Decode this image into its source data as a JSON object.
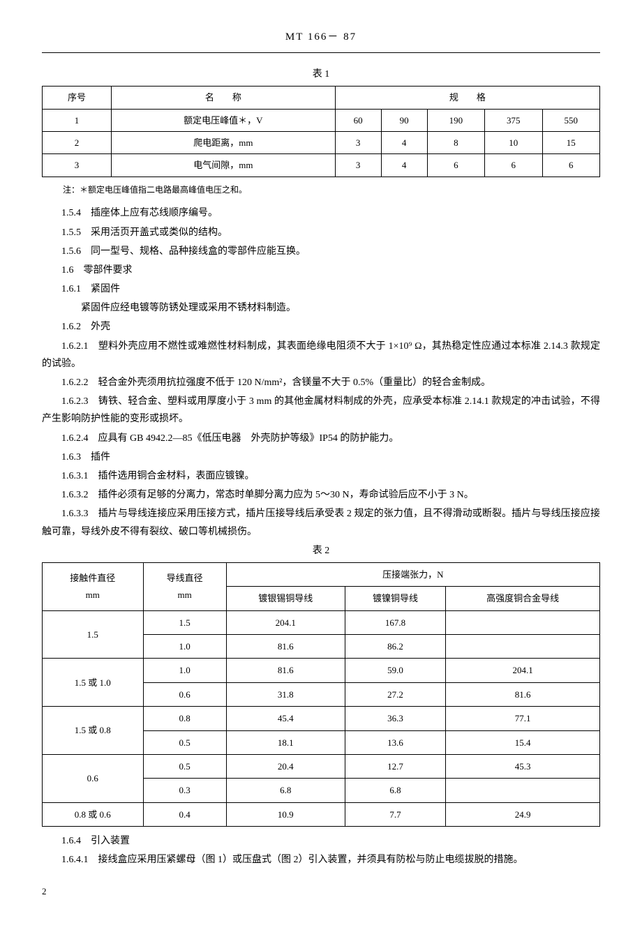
{
  "header": {
    "code": "MT 166－ 87"
  },
  "table1": {
    "caption": "表 1",
    "headers": {
      "col1": "序号",
      "col2": "名　　称",
      "col3": "规　　格"
    },
    "rows": [
      {
        "no": "1",
        "name": "额定电压峰值＊，V",
        "vals": [
          "60",
          "90",
          "190",
          "375",
          "550"
        ]
      },
      {
        "no": "2",
        "name": "爬电距离，mm",
        "vals": [
          "3",
          "4",
          "8",
          "10",
          "15"
        ]
      },
      {
        "no": "3",
        "name": "电气间隙，mm",
        "vals": [
          "3",
          "4",
          "6",
          "6",
          "6"
        ]
      }
    ]
  },
  "note": "注：＊额定电压峰值指二电路最高峰值电压之和。",
  "paragraphs": {
    "p1_5_4": "1.5.4　插座体上应有芯线顺序编号。",
    "p1_5_5": "1.5.5　采用活页开盖式或类似的结构。",
    "p1_5_6": "1.5.6　同一型号、规格、品种接线盒的零部件应能互换。",
    "p1_6": "1.6　零部件要求",
    "p1_6_1": "1.6.1　紧固件",
    "p1_6_1_body": "紧固件应经电镀等防锈处理或采用不锈材料制造。",
    "p1_6_2": "1.6.2　外壳",
    "p1_6_2_1": "1.6.2.1　塑料外壳应用不燃性或难燃性材料制成，其表面绝缘电阻须不大于 1×10⁹ Ω，其热稳定性应通过本标准 2.14.3 款规定的试验。",
    "p1_6_2_2": "1.6.2.2　轻合金外壳须用抗拉强度不低于 120 N/mm²，含镁量不大于 0.5%（重量比）的轻合金制成。",
    "p1_6_2_3": "1.6.2.3　铸铁、轻合金、塑料或用厚度小于 3 mm 的其他金属材料制成的外壳，应承受本标准 2.14.1 款规定的冲击试验，不得产生影响防护性能的变形或损坏。",
    "p1_6_2_4": "1.6.2.4　应具有 GB 4942.2—85《低压电器　外壳防护等级》IP54 的防护能力。",
    "p1_6_3": "1.6.3　插件",
    "p1_6_3_1": "1.6.3.1　插件选用铜合金材料，表面应镀镍。",
    "p1_6_3_2": "1.6.3.2　插件必须有足够的分离力，常态时单脚分离力应为 5～30 N，寿命试验后应不小于 3 N。",
    "p1_6_3_3": "1.6.3.3　插片与导线连接应采用压接方式，插片压接导线后承受表 2 规定的张力值，且不得滑动或断裂。插片与导线压接应接触可靠，导线外皮不得有裂纹、破口等机械损伤。",
    "p1_6_4": "1.6.4　引入装置",
    "p1_6_4_1": "1.6.4.1　接线盒应采用压紧螺母（图 1）或压盘式（图 2）引入装置，并须具有防松与防止电缆拔脱的措施。"
  },
  "table2": {
    "caption": "表 2",
    "headers": {
      "c1": "接触件直径",
      "c1u": "mm",
      "c2": "导线直径",
      "c2u": "mm",
      "c3": "压接端张力，N",
      "c3a": "镀银锡铜导线",
      "c3b": "镀镍铜导线",
      "c3c": "高强度铜合金导线"
    },
    "rows": [
      {
        "d1": "1.5",
        "d2": "1.5",
        "a": "204.1",
        "b": "167.8",
        "c": ""
      },
      {
        "d1": "",
        "d2": "1.0",
        "a": "81.6",
        "b": "86.2",
        "c": ""
      },
      {
        "d1": "1.5 或 1.0",
        "d2": "1.0",
        "a": "81.6",
        "b": "59.0",
        "c": "204.1"
      },
      {
        "d1": "",
        "d2": "0.6",
        "a": "31.8",
        "b": "27.2",
        "c": "81.6"
      },
      {
        "d1": "1.5 或 0.8",
        "d2": "0.8",
        "a": "45.4",
        "b": "36.3",
        "c": "77.1"
      },
      {
        "d1": "",
        "d2": "0.5",
        "a": "18.1",
        "b": "13.6",
        "c": "15.4"
      },
      {
        "d1": "0.6",
        "d2": "0.5",
        "a": "20.4",
        "b": "12.7",
        "c": "45.3"
      },
      {
        "d1": "",
        "d2": "0.3",
        "a": "6.8",
        "b": "6.8",
        "c": ""
      },
      {
        "d1": "0.8 或 0.6",
        "d2": "0.4",
        "a": "10.9",
        "b": "7.7",
        "c": "24.9"
      }
    ]
  },
  "page_number": "2"
}
